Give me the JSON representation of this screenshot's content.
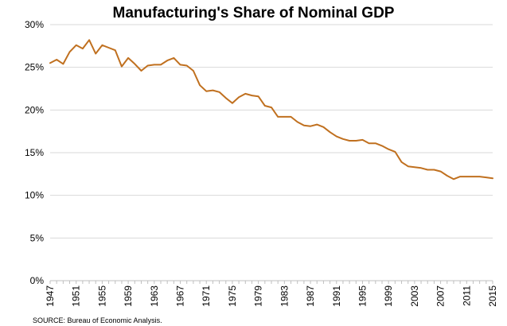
{
  "chart_data": {
    "type": "line",
    "title": "Manufacturing's Share of Nominal GDP",
    "xlabel": "",
    "ylabel": "",
    "xlim": [
      1947,
      2015
    ],
    "ylim": [
      0,
      30
    ],
    "y_ticks": [
      0,
      5,
      10,
      15,
      20,
      25,
      30
    ],
    "y_tick_labels": [
      "0%",
      "5%",
      "10%",
      "15%",
      "20%",
      "25%",
      "30%"
    ],
    "x_ticks": [
      1947,
      1951,
      1955,
      1959,
      1963,
      1967,
      1971,
      1975,
      1979,
      1983,
      1987,
      1991,
      1995,
      1999,
      2003,
      2007,
      2011,
      2015
    ],
    "x_tick_labels": [
      "1947",
      "1951",
      "1955",
      "1959",
      "1963",
      "1967",
      "1971",
      "1975",
      "1979",
      "1983",
      "1987",
      "1991",
      "1995",
      "1999",
      "2003",
      "2007",
      "2011",
      "2015"
    ],
    "grid": "horizontal",
    "series": [
      {
        "name": "Manufacturing share of nominal GDP",
        "color": "#c0701f",
        "x": [
          1947,
          1948,
          1949,
          1950,
          1951,
          1952,
          1953,
          1954,
          1955,
          1956,
          1957,
          1958,
          1959,
          1960,
          1961,
          1962,
          1963,
          1964,
          1965,
          1966,
          1967,
          1968,
          1969,
          1970,
          1971,
          1972,
          1973,
          1974,
          1975,
          1976,
          1977,
          1978,
          1979,
          1980,
          1981,
          1982,
          1983,
          1984,
          1985,
          1986,
          1987,
          1988,
          1989,
          1990,
          1991,
          1992,
          1993,
          1994,
          1995,
          1996,
          1997,
          1998,
          1999,
          2000,
          2001,
          2002,
          2003,
          2004,
          2005,
          2006,
          2007,
          2008,
          2009,
          2010,
          2011,
          2012,
          2013,
          2014,
          2015
        ],
        "values": [
          25.5,
          25.9,
          25.4,
          26.8,
          27.6,
          27.2,
          28.2,
          26.6,
          27.6,
          27.3,
          27.0,
          25.1,
          26.1,
          25.4,
          24.6,
          25.2,
          25.3,
          25.3,
          25.8,
          26.1,
          25.3,
          25.2,
          24.6,
          22.9,
          22.2,
          22.3,
          22.1,
          21.4,
          20.8,
          21.5,
          21.9,
          21.7,
          21.6,
          20.5,
          20.3,
          19.2,
          19.2,
          19.2,
          18.6,
          18.2,
          18.1,
          18.3,
          18.0,
          17.4,
          16.9,
          16.6,
          16.4,
          16.4,
          16.5,
          16.1,
          16.1,
          15.8,
          15.4,
          15.1,
          13.9,
          13.4,
          13.3,
          13.2,
          13.0,
          13.0,
          12.8,
          12.3,
          11.9,
          12.2,
          12.2,
          12.2,
          12.2,
          12.1,
          12.0
        ]
      }
    ]
  },
  "source": "SOURCE: Bureau of Economic Analysis."
}
